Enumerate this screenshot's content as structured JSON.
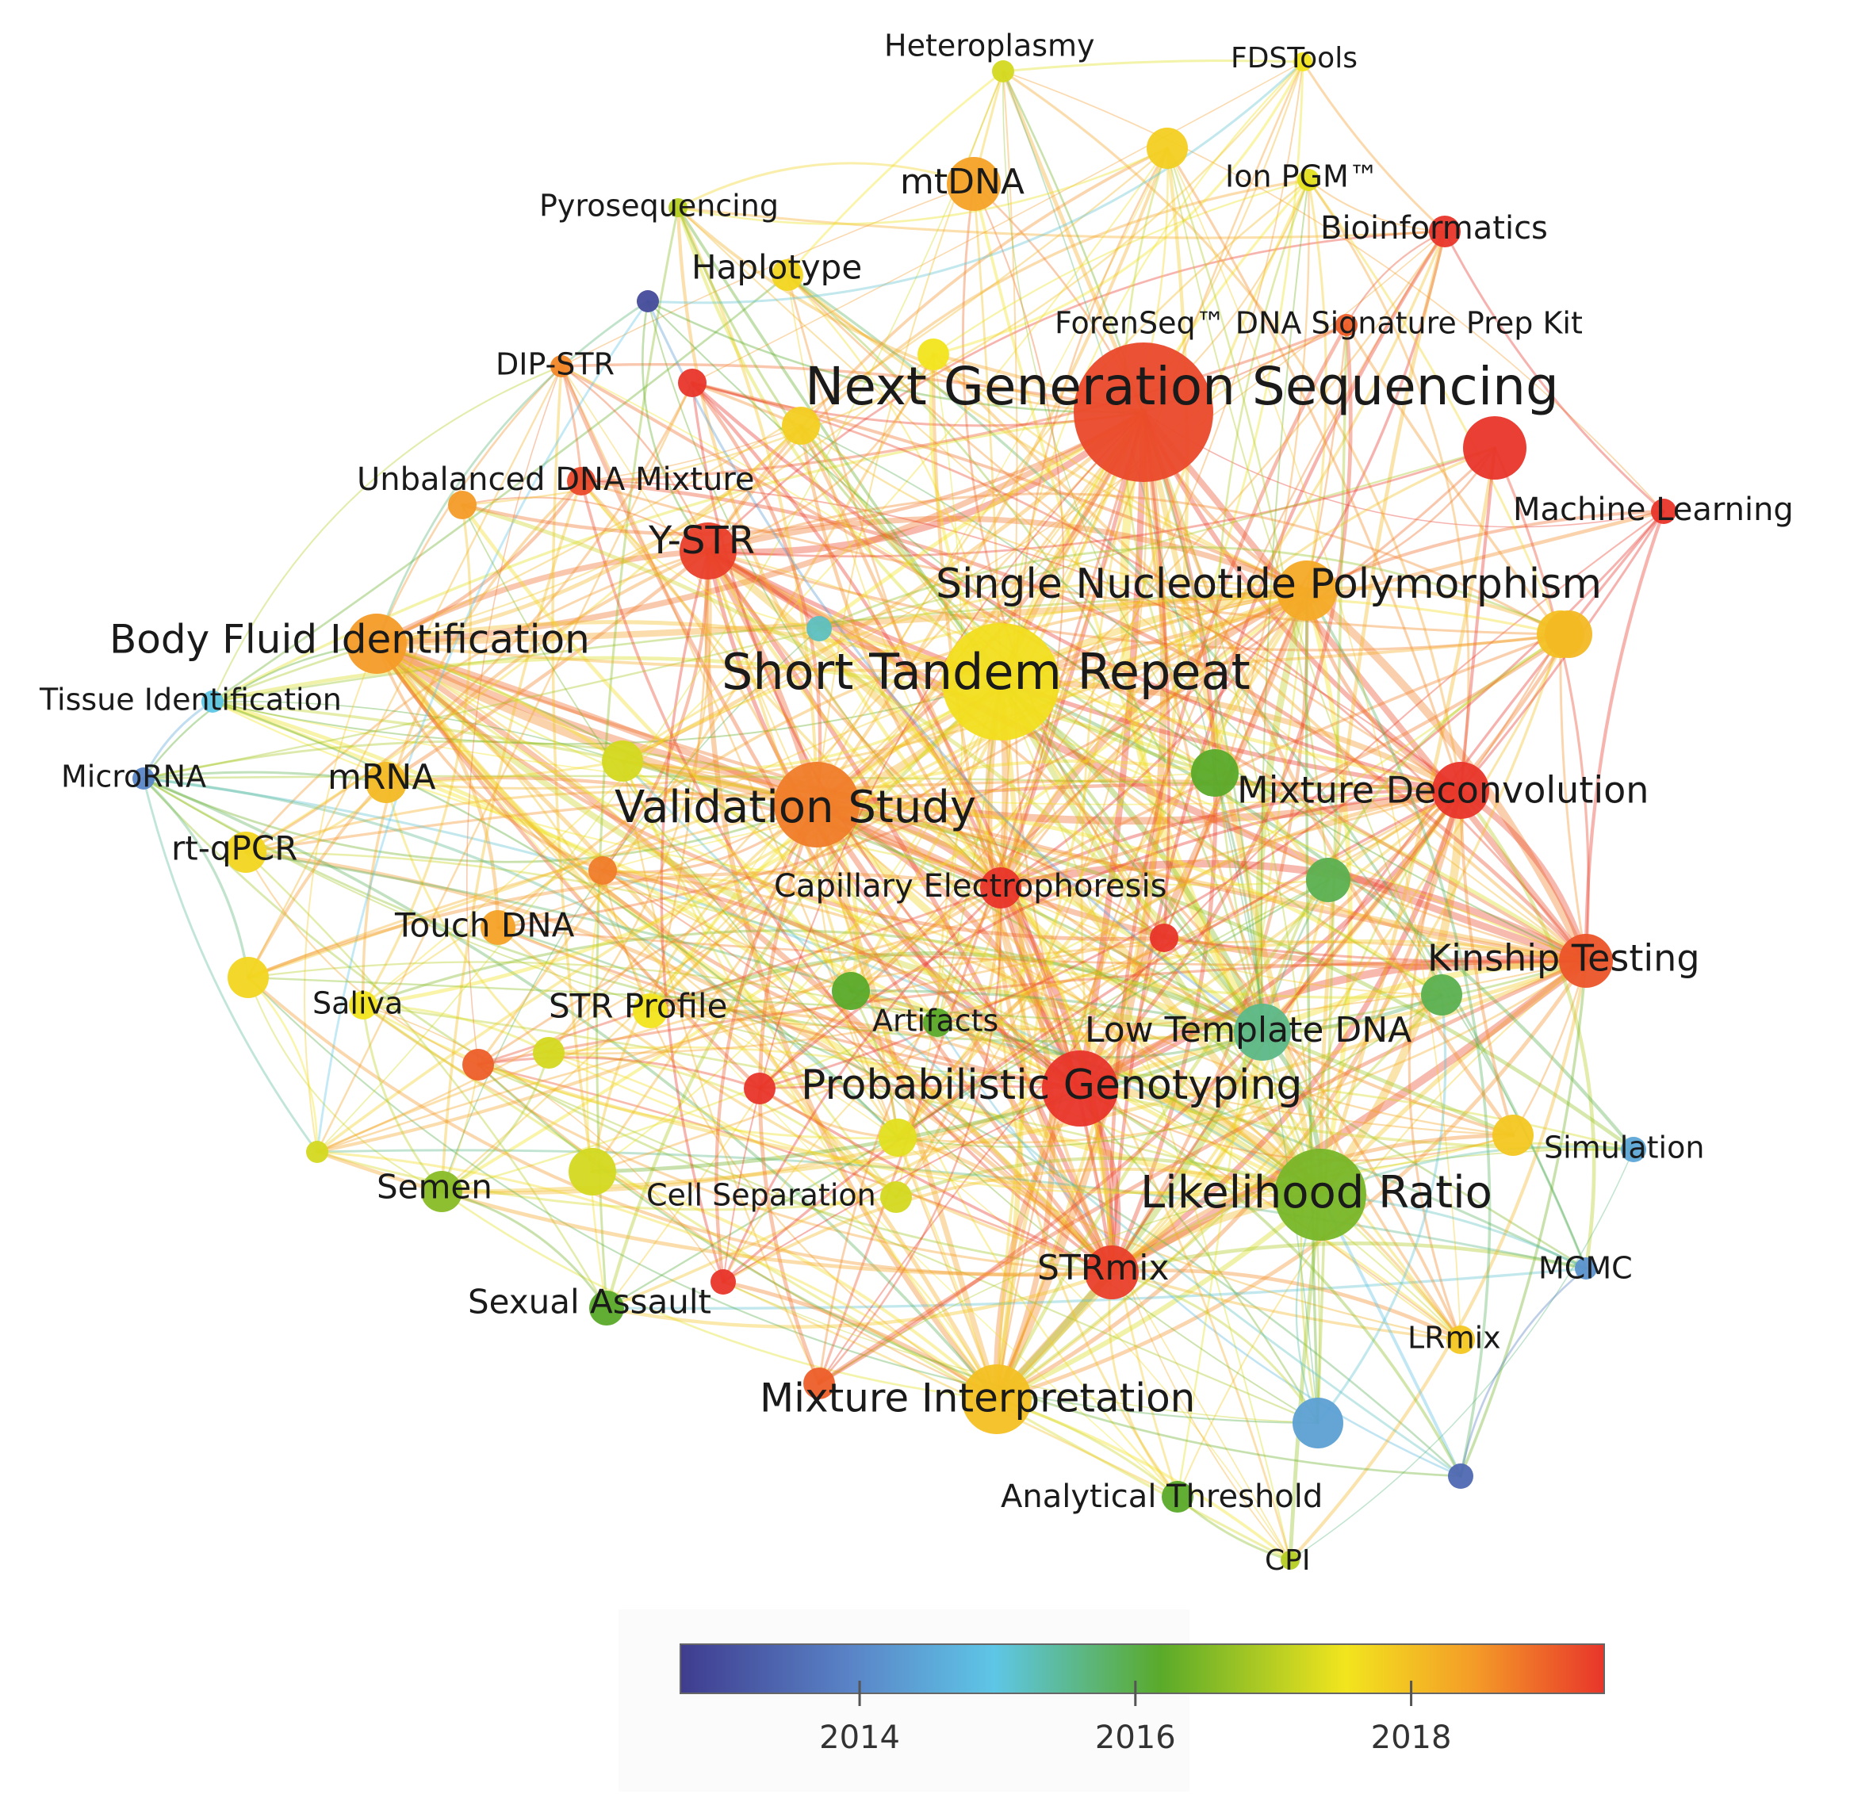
{
  "colors": {
    "y2013": "#3f3c8e",
    "y2014": "#5a86c8",
    "y2015": "#5ec6e6",
    "y2016": "#5aaa2a",
    "y2017": "#f2e51e",
    "y2018": "#f49b28",
    "y2019": "#e8352a"
  },
  "legend": {
    "ticks": [
      {
        "year": 2014,
        "label": "2014"
      },
      {
        "year": 2016,
        "label": "2016"
      },
      {
        "year": 2018,
        "label": "2018"
      }
    ],
    "range": [
      2012.7,
      2019.4
    ]
  },
  "nodes": [
    {
      "id": "ngs",
      "label": "Next Generation Sequencing",
      "year": 2018.8,
      "weight": 10
    },
    {
      "id": "str",
      "label": "Short Tandem Repeat",
      "year": 2017.1,
      "weight": 9
    },
    {
      "id": "vs",
      "label": "Validation Study",
      "year": 2018.3,
      "weight": 7
    },
    {
      "id": "lr",
      "label": "Likelihood Ratio",
      "year": 2016.2,
      "weight": 7
    },
    {
      "id": "snp",
      "label": "Single Nucleotide Polymorphism",
      "year": 2017.8,
      "weight": 5
    },
    {
      "id": "pg",
      "label": "Probabilistic Genotyping",
      "year": 2019.0,
      "weight": 5
    },
    {
      "id": "bfi",
      "label": "Body Fluid Identification",
      "year": 2018.0,
      "weight": 4
    },
    {
      "id": "ystr",
      "label": "Y-STR",
      "year": 2018.9,
      "weight": 4
    },
    {
      "id": "md",
      "label": "Mixture Deconvolution",
      "year": 2019.0,
      "weight": 4
    },
    {
      "id": "kt",
      "label": "Kinship Testing",
      "year": 2018.7,
      "weight": 3
    },
    {
      "id": "mi",
      "label": "Mixture Interpretation",
      "year": 2017.5,
      "weight": 4
    },
    {
      "id": "strmix",
      "label": "STRmix",
      "year": 2018.9,
      "weight": 3
    },
    {
      "id": "ltd",
      "label": "Low Template DNA",
      "year": 2015.5,
      "weight": 3
    },
    {
      "id": "mtdna",
      "label": "mtDNA",
      "year": 2017.9,
      "weight": 3
    },
    {
      "id": "ce",
      "label": "Capillary Electrophoresis",
      "year": 2019.0,
      "weight": 2
    },
    {
      "id": "mrna",
      "label": "mRNA",
      "year": 2017.6,
      "weight": 2
    },
    {
      "id": "rtq",
      "label": "rt-qPCR",
      "year": 2017.2,
      "weight": 2
    },
    {
      "id": "touch",
      "label": "Touch DNA",
      "year": 2017.9,
      "weight": 1.5
    },
    {
      "id": "semen",
      "label": "Semen",
      "year": 2016.3,
      "weight": 2
    },
    {
      "id": "sa",
      "label": "Sexual Assault",
      "year": 2016.0,
      "weight": 2
    },
    {
      "id": "hap",
      "label": "Haplotype",
      "year": 2017.2,
      "weight": 2
    },
    {
      "id": "bio",
      "label": "Bioinformatics",
      "year": 2019.0,
      "weight": 1.5
    },
    {
      "id": "ml",
      "label": "Machine Learning",
      "year": 2019.2,
      "weight": 1
    },
    {
      "id": "tissue",
      "label": "Tissue Identification",
      "year": 2015.0,
      "weight": 1
    },
    {
      "id": "microrna",
      "label": "MicroRNA",
      "year": 2014.0,
      "weight": 1
    },
    {
      "id": "strp",
      "label": "STR Profile",
      "year": 2017.0,
      "weight": 2
    },
    {
      "id": "saliva",
      "label": "Saliva",
      "year": 2017.0,
      "weight": 1.5
    },
    {
      "id": "artifacts",
      "label": "Artifacts",
      "year": 2016.0,
      "weight": 1.5
    },
    {
      "id": "cellsep",
      "label": "Cell Separation",
      "year": 2016.8,
      "weight": 1.5
    },
    {
      "id": "lrmix",
      "label": "LRmix",
      "year": 2017.4,
      "weight": 1.5
    },
    {
      "id": "mcmc",
      "label": "MCMC",
      "year": 2014.2,
      "weight": 1
    },
    {
      "id": "sim",
      "label": "Simulation",
      "year": 2014.5,
      "weight": 1
    },
    {
      "id": "at",
      "label": "Analytical Threshold",
      "year": 2016.0,
      "weight": 1.5
    },
    {
      "id": "cpi",
      "label": "CPI",
      "year": 2016.6,
      "weight": 1
    },
    {
      "id": "dipstr",
      "label": "DIP-STR",
      "year": 2018.2,
      "weight": 1
    },
    {
      "id": "udm",
      "label": "Unbalanced DNA Mixture",
      "year": 2018.8,
      "weight": 1.5
    },
    {
      "id": "pyro",
      "label": "Pyrosequencing",
      "year": 2016.6,
      "weight": 1
    },
    {
      "id": "hetero",
      "label": "Heteroplasmy",
      "year": 2016.8,
      "weight": 1
    },
    {
      "id": "fds",
      "label": "FDSTools",
      "year": 2017.0,
      "weight": 1
    },
    {
      "id": "ion",
      "label": "Ion PGM™",
      "year": 2016.9,
      "weight": 1
    },
    {
      "id": "forenseq",
      "label": "ForenSeq™ DNA Signature Prep Kit",
      "year": 2018.6,
      "weight": 1
    },
    {
      "id": "u1",
      "label": "",
      "year": 2019.0,
      "weight": 3
    },
    {
      "id": "u2",
      "label": "",
      "year": 2017.3,
      "weight": 2
    },
    {
      "id": "u3",
      "label": "",
      "year": 2017.5,
      "weight": 2.5
    },
    {
      "id": "u4",
      "label": "",
      "year": 2016.0,
      "weight": 2.5
    },
    {
      "id": "u5",
      "label": "",
      "year": 2015.8,
      "weight": 2
    },
    {
      "id": "u6",
      "label": "",
      "year": 2014.4,
      "weight": 3
    },
    {
      "id": "u7",
      "label": "",
      "year": 2016.0,
      "weight": 2
    },
    {
      "id": "u8",
      "label": "",
      "year": 2019.0,
      "weight": 1.5
    },
    {
      "id": "u9",
      "label": "",
      "year": 2019.0,
      "weight": 1.5
    },
    {
      "id": "u10",
      "label": "",
      "year": 2018.3,
      "weight": 1.5
    },
    {
      "id": "u11",
      "label": "",
      "year": 2017.3,
      "weight": 2
    },
    {
      "id": "u12",
      "label": "",
      "year": 2016.8,
      "weight": 2
    },
    {
      "id": "u13",
      "label": "",
      "year": 2016.9,
      "weight": 2
    },
    {
      "id": "u14",
      "label": "",
      "year": 2016.8,
      "weight": 2.5
    },
    {
      "id": "u15",
      "label": "",
      "year": 2018.6,
      "weight": 1.5
    },
    {
      "id": "u16",
      "label": "",
      "year": 2016.8,
      "weight": 1.5
    },
    {
      "id": "u17",
      "label": "",
      "year": 2019.1,
      "weight": 1.5
    },
    {
      "id": "u18",
      "label": "",
      "year": 2018.6,
      "weight": 1.5
    },
    {
      "id": "u19",
      "label": "",
      "year": 2019.0,
      "weight": 1.5
    },
    {
      "id": "u20",
      "label": "",
      "year": 2015.8,
      "weight": 1.5
    },
    {
      "id": "u21",
      "label": "",
      "year": 2016.8,
      "weight": 1
    },
    {
      "id": "u22",
      "label": "",
      "year": 2013.2,
      "weight": 1
    },
    {
      "id": "u23",
      "label": "",
      "year": 2013.6,
      "weight": 1
    },
    {
      "id": "u24",
      "label": "",
      "year": 2015.2,
      "weight": 1
    },
    {
      "id": "u25",
      "label": "",
      "year": 2018.0,
      "weight": 1.5
    },
    {
      "id": "u26",
      "label": "",
      "year": 2017.4,
      "weight": 2
    },
    {
      "id": "u27",
      "label": "",
      "year": 2017.0,
      "weight": 1.5
    },
    {
      "id": "u28",
      "label": "",
      "year": 2017.2,
      "weight": 1.5
    },
    {
      "id": "u29",
      "label": "",
      "year": 2017.6,
      "weight": 2.5
    }
  ]
}
